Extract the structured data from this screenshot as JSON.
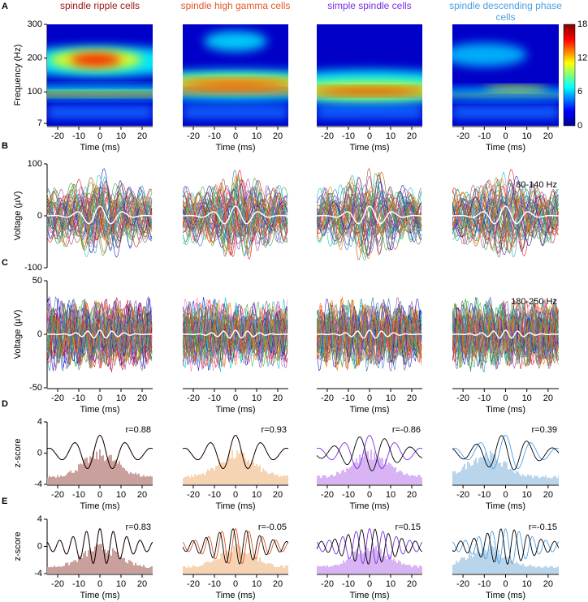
{
  "columns": [
    {
      "title": "spindle ripple cells",
      "color": "#a01818"
    },
    {
      "title": "spindle high gamma cells",
      "color": "#e2582a"
    },
    {
      "title": "simple spindle cells",
      "color": "#7a2fe6"
    },
    {
      "title": "spindle descending phase cells",
      "color": "#4c9fe3"
    }
  ],
  "xlim": [
    -25,
    25
  ],
  "xticks": [
    -20,
    -10,
    0,
    10,
    20
  ],
  "panels": [
    {
      "letter": "A",
      "y_label": "Frequency (Hz)",
      "x_label": "Time (ms)",
      "ylim": [
        0,
        300
      ],
      "yticks": [
        7,
        100,
        200,
        300
      ],
      "colorbar": {
        "lim": [
          0,
          18
        ],
        "ticks": [
          0,
          6,
          12,
          18
        ]
      }
    },
    {
      "letter": "B",
      "y_label": "Voltage (µV)",
      "ylim": [
        -100,
        100
      ],
      "yticks": [
        -100,
        0,
        100
      ],
      "band": "80-140 Hz"
    },
    {
      "letter": "C",
      "y_label": "Voltage (µV)",
      "x_label": "Time (ms)",
      "ylim": [
        -50,
        50
      ],
      "yticks": [
        -50,
        0,
        50
      ],
      "band": "180-250 Hz"
    },
    {
      "letter": "D",
      "y_label": "z-score",
      "x_label": "Time (ms)",
      "ylim": [
        -4,
        4
      ],
      "yticks": [
        -4,
        0,
        4
      ],
      "r_values": [
        "r=0.88",
        "r=0.93",
        "r=-0.86",
        "r=0.39"
      ]
    },
    {
      "letter": "E",
      "y_label": "z-score",
      "x_label": "Time (ms)",
      "ylim": [
        -4,
        4
      ],
      "yticks": [
        -4,
        0,
        4
      ],
      "r_values": [
        "r=0.83",
        "r=-0.05",
        "r=0.15",
        "r=-0.15"
      ]
    }
  ]
}
